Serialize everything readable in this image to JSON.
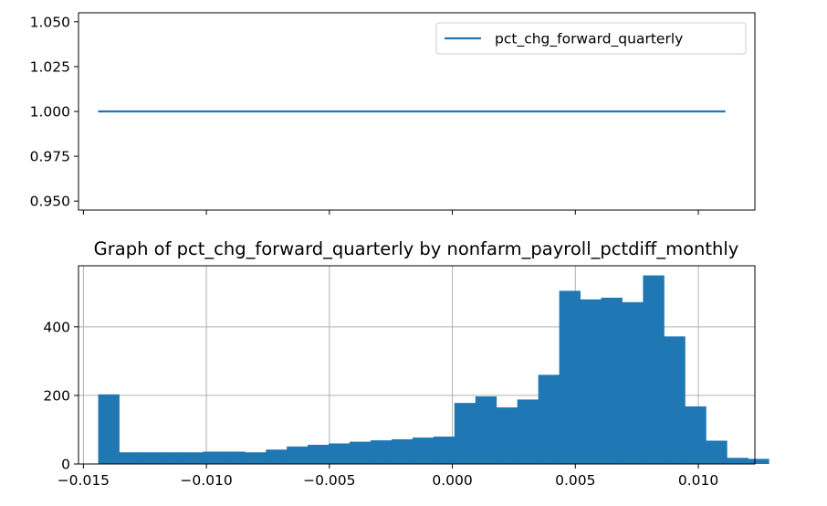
{
  "chart_data": [
    {
      "type": "line",
      "title": "",
      "xlabel": "",
      "ylabel": "",
      "legend": {
        "placement": "top-right",
        "entries": [
          "pct_chg_forward_quarterly"
        ]
      },
      "series": [
        {
          "name": "pct_chg_forward_quarterly",
          "color": "#1f77b4",
          "x": [
            -0.0144,
            0.0111
          ],
          "y": [
            1.0,
            1.0
          ]
        }
      ],
      "xlim": [
        -0.0152,
        0.0123
      ],
      "ylim": [
        0.945,
        1.055
      ],
      "yticks": [
        0.95,
        0.975,
        1.0,
        1.025,
        1.05
      ],
      "ytick_labels": [
        "0.950",
        "0.975",
        "1.000",
        "1.025",
        "1.050"
      ],
      "xticks": [
        -0.015,
        -0.01,
        -0.005,
        0.0,
        0.005,
        0.01
      ],
      "grid": false
    },
    {
      "type": "bar",
      "title": "Graph of pct_chg_forward_quarterly by nonfarm_payroll_pctdiff_monthly",
      "xlabel": "",
      "ylabel": "",
      "color": "#1f77b4",
      "bin_start": -0.0144,
      "bin_width": 0.000852,
      "counts": [
        203,
        34,
        34,
        34,
        34,
        36,
        36,
        34,
        42,
        51,
        56,
        60,
        65,
        69,
        72,
        77,
        80,
        178,
        197,
        165,
        188,
        260,
        505,
        480,
        485,
        472,
        550,
        372,
        168,
        68,
        18,
        15
      ],
      "xlim": [
        -0.0152,
        0.0123
      ],
      "ylim": [
        0,
        578
      ],
      "xticks": [
        -0.015,
        -0.01,
        -0.005,
        0.0,
        0.005,
        0.01
      ],
      "xtick_labels": [
        "−0.015",
        "−0.010",
        "−0.005",
        "0.000",
        "0.005",
        "0.010"
      ],
      "yticks": [
        0,
        200,
        400
      ],
      "ytick_labels": [
        "0",
        "200",
        "400"
      ],
      "grid": true
    }
  ]
}
